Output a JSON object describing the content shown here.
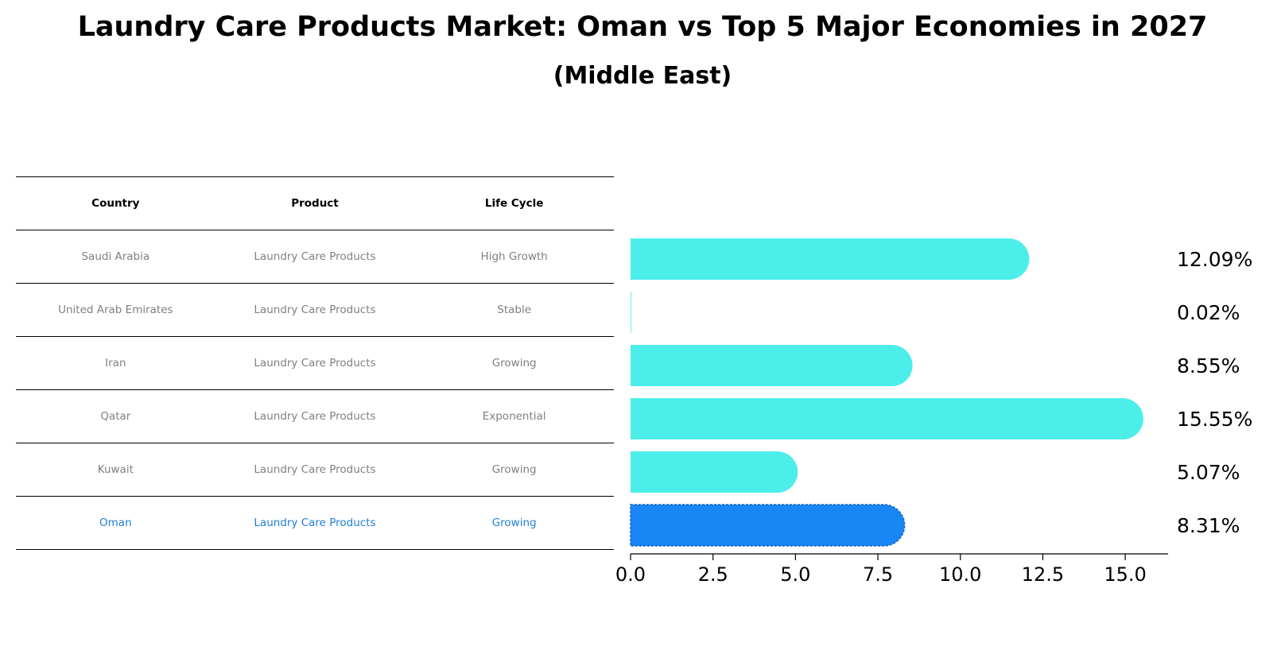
{
  "title": "Laundry Care Products Market: Oman vs Top 5 Major Economies in 2027",
  "subtitle": "(Middle East)",
  "table": {
    "headers": [
      "Country",
      "Product",
      "Life Cycle"
    ],
    "rows": [
      {
        "country": "Saudi Arabia",
        "product": "Laundry Care Products",
        "life_cycle": "High Growth"
      },
      {
        "country": "United Arab Emirates",
        "product": "Laundry Care Products",
        "life_cycle": "Stable"
      },
      {
        "country": "Iran",
        "product": "Laundry Care Products",
        "life_cycle": "Growing"
      },
      {
        "country": "Qatar",
        "product": "Laundry Care Products",
        "life_cycle": "Exponential"
      },
      {
        "country": "Kuwait",
        "product": "Laundry Care Products",
        "life_cycle": "Growing"
      },
      {
        "country": "Oman",
        "product": "Laundry Care Products",
        "life_cycle": "Growing",
        "highlight": true
      }
    ]
  },
  "chart_data": {
    "type": "bar",
    "orientation": "horizontal",
    "categories": [
      "Saudi Arabia",
      "United Arab Emirates",
      "Iran",
      "Qatar",
      "Kuwait",
      "Oman"
    ],
    "values": [
      12.09,
      0.02,
      8.55,
      15.55,
      5.07,
      8.31
    ],
    "value_labels": [
      "12.09%",
      "0.02%",
      "8.55%",
      "15.55%",
      "5.07%",
      "8.31%"
    ],
    "highlight_category": "Oman",
    "xlim": [
      0,
      16.3
    ],
    "xticks": [
      0,
      2.5,
      5,
      7.5,
      10,
      12.5,
      15
    ],
    "xtick_labels": [
      "0.0",
      "2.5",
      "5.0",
      "7.5",
      "10.0",
      "12.5",
      "15.0"
    ],
    "colors": {
      "default": "#4ceeea",
      "highlight": "#1a86f5"
    },
    "grid": false,
    "xlabel": "",
    "ylabel": ""
  },
  "colors": {
    "highlight_text": "#1f7fd4",
    "muted_text": "#808080"
  }
}
